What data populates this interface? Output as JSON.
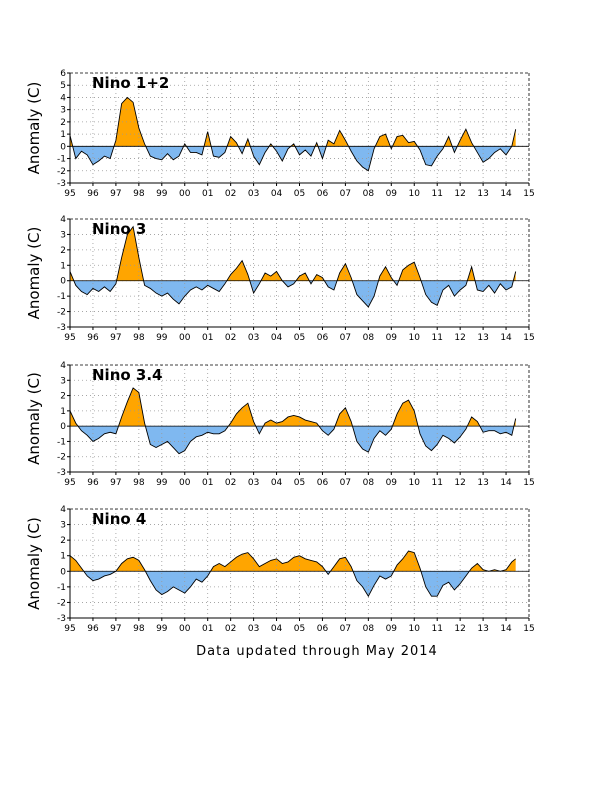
{
  "footer": "Data updated through May 2014",
  "colors": {
    "positive": "#ffa500",
    "negative": "#7fb8f0",
    "line": "#000000",
    "grid": "#999999"
  },
  "chart_data": [
    {
      "type": "area",
      "title": "Nino 1+2",
      "ylabel": "Anomaly (C)",
      "xlim": [
        95,
        115
      ],
      "ylim": [
        -3,
        6
      ],
      "yticks": [
        -3,
        -2,
        -1,
        0,
        1,
        2,
        3,
        4,
        5,
        6
      ],
      "xticks": [
        95,
        96,
        97,
        98,
        99,
        100,
        101,
        102,
        103,
        104,
        105,
        106,
        107,
        108,
        109,
        110,
        111,
        112,
        113,
        114,
        115
      ],
      "xtick_labels": [
        "95",
        "96",
        "97",
        "98",
        "99",
        "00",
        "01",
        "02",
        "03",
        "04",
        "05",
        "06",
        "07",
        "08",
        "09",
        "10",
        "11",
        "12",
        "13",
        "14",
        "15"
      ],
      "grid": true,
      "x": [
        95.0,
        95.25,
        95.5,
        95.75,
        96.0,
        96.25,
        96.5,
        96.75,
        97.0,
        97.25,
        97.5,
        97.75,
        98.0,
        98.25,
        98.5,
        98.75,
        99.0,
        99.25,
        99.5,
        99.75,
        100.0,
        100.25,
        100.5,
        100.75,
        101.0,
        101.25,
        101.5,
        101.75,
        102.0,
        102.25,
        102.5,
        102.75,
        103.0,
        103.25,
        103.5,
        103.75,
        104.0,
        104.25,
        104.5,
        104.75,
        105.0,
        105.25,
        105.5,
        105.75,
        106.0,
        106.25,
        106.5,
        106.75,
        107.0,
        107.25,
        107.5,
        107.75,
        108.0,
        108.25,
        108.5,
        108.75,
        109.0,
        109.25,
        109.5,
        109.75,
        110.0,
        110.25,
        110.5,
        110.75,
        111.0,
        111.25,
        111.5,
        111.75,
        112.0,
        112.25,
        112.5,
        112.75,
        113.0,
        113.25,
        113.5,
        113.75,
        114.0,
        114.25,
        114.42
      ],
      "values": [
        0.9,
        -1.0,
        -0.4,
        -0.7,
        -1.5,
        -1.2,
        -0.8,
        -1.0,
        0.5,
        3.5,
        4.0,
        3.6,
        1.5,
        0.2,
        -0.8,
        -1.0,
        -1.1,
        -0.6,
        -1.1,
        -0.8,
        0.2,
        -0.5,
        -0.5,
        -0.7,
        1.2,
        -0.8,
        -0.9,
        -0.5,
        0.8,
        0.3,
        -0.6,
        0.6,
        -0.8,
        -1.5,
        -0.5,
        0.2,
        -0.4,
        -1.2,
        -0.2,
        0.2,
        -0.7,
        -0.3,
        -0.8,
        0.3,
        -1.0,
        0.5,
        0.2,
        1.3,
        0.5,
        -0.4,
        -1.2,
        -1.7,
        -2.0,
        -0.2,
        0.8,
        1.0,
        -0.2,
        0.8,
        0.9,
        0.3,
        0.4,
        -0.3,
        -1.5,
        -1.6,
        -0.8,
        -0.2,
        0.8,
        -0.5,
        0.5,
        1.4,
        0.3,
        -0.5,
        -1.3,
        -1.0,
        -0.5,
        -0.2,
        -0.7,
        0.0,
        1.4
      ]
    },
    {
      "type": "area",
      "title": "Nino 3",
      "ylabel": "Anomaly (C)",
      "xlim": [
        95,
        115
      ],
      "ylim": [
        -3,
        4
      ],
      "yticks": [
        -3,
        -2,
        -1,
        0,
        1,
        2,
        3,
        4
      ],
      "xticks": [
        95,
        96,
        97,
        98,
        99,
        100,
        101,
        102,
        103,
        104,
        105,
        106,
        107,
        108,
        109,
        110,
        111,
        112,
        113,
        114,
        115
      ],
      "xtick_labels": [
        "95",
        "96",
        "97",
        "98",
        "99",
        "00",
        "01",
        "02",
        "03",
        "04",
        "05",
        "06",
        "07",
        "08",
        "09",
        "10",
        "11",
        "12",
        "13",
        "14",
        "15"
      ],
      "grid": true,
      "x": [
        95.0,
        95.25,
        95.5,
        95.75,
        96.0,
        96.25,
        96.5,
        96.75,
        97.0,
        97.25,
        97.5,
        97.75,
        98.0,
        98.25,
        98.5,
        98.75,
        99.0,
        99.25,
        99.5,
        99.75,
        100.0,
        100.25,
        100.5,
        100.75,
        101.0,
        101.25,
        101.5,
        101.75,
        102.0,
        102.25,
        102.5,
        102.75,
        103.0,
        103.25,
        103.5,
        103.75,
        104.0,
        104.25,
        104.5,
        104.75,
        105.0,
        105.25,
        105.5,
        105.75,
        106.0,
        106.25,
        106.5,
        106.75,
        107.0,
        107.25,
        107.5,
        107.75,
        108.0,
        108.25,
        108.5,
        108.75,
        109.0,
        109.25,
        109.5,
        109.75,
        110.0,
        110.25,
        110.5,
        110.75,
        111.0,
        111.25,
        111.5,
        111.75,
        112.0,
        112.25,
        112.5,
        112.75,
        113.0,
        113.25,
        113.5,
        113.75,
        114.0,
        114.25,
        114.42
      ],
      "values": [
        0.6,
        -0.3,
        -0.7,
        -0.9,
        -0.5,
        -0.7,
        -0.4,
        -0.7,
        -0.2,
        1.5,
        3.0,
        3.5,
        1.5,
        -0.3,
        -0.5,
        -0.8,
        -1.0,
        -0.8,
        -1.2,
        -1.5,
        -1.0,
        -0.6,
        -0.4,
        -0.6,
        -0.3,
        -0.5,
        -0.7,
        -0.2,
        0.4,
        0.8,
        1.3,
        0.4,
        -0.8,
        -0.2,
        0.5,
        0.3,
        0.6,
        0.0,
        -0.4,
        -0.2,
        0.3,
        0.5,
        -0.2,
        0.4,
        0.2,
        -0.4,
        -0.6,
        0.5,
        1.1,
        0.2,
        -0.9,
        -1.3,
        -1.7,
        -1.0,
        0.3,
        0.9,
        0.2,
        -0.3,
        0.7,
        1.0,
        1.2,
        0.2,
        -0.9,
        -1.4,
        -1.6,
        -0.6,
        -0.3,
        -1.0,
        -0.6,
        -0.3,
        0.9,
        -0.6,
        -0.7,
        -0.3,
        -0.8,
        -0.2,
        -0.6,
        -0.4,
        0.6
      ]
    },
    {
      "type": "area",
      "title": "Nino 3.4",
      "ylabel": "Anomaly (C)",
      "xlim": [
        95,
        115
      ],
      "ylim": [
        -3,
        4
      ],
      "yticks": [
        -3,
        -2,
        -1,
        0,
        1,
        2,
        3,
        4
      ],
      "xticks": [
        95,
        96,
        97,
        98,
        99,
        100,
        101,
        102,
        103,
        104,
        105,
        106,
        107,
        108,
        109,
        110,
        111,
        112,
        113,
        114,
        115
      ],
      "xtick_labels": [
        "95",
        "96",
        "97",
        "98",
        "99",
        "00",
        "01",
        "02",
        "03",
        "04",
        "05",
        "06",
        "07",
        "08",
        "09",
        "10",
        "11",
        "12",
        "13",
        "14",
        "15"
      ],
      "grid": true,
      "x": [
        95.0,
        95.25,
        95.5,
        95.75,
        96.0,
        96.25,
        96.5,
        96.75,
        97.0,
        97.25,
        97.5,
        97.75,
        98.0,
        98.25,
        98.5,
        98.75,
        99.0,
        99.25,
        99.5,
        99.75,
        100.0,
        100.25,
        100.5,
        100.75,
        101.0,
        101.25,
        101.5,
        101.75,
        102.0,
        102.25,
        102.5,
        102.75,
        103.0,
        103.25,
        103.5,
        103.75,
        104.0,
        104.25,
        104.5,
        104.75,
        105.0,
        105.25,
        105.5,
        105.75,
        106.0,
        106.25,
        106.5,
        106.75,
        107.0,
        107.25,
        107.5,
        107.75,
        108.0,
        108.25,
        108.5,
        108.75,
        109.0,
        109.25,
        109.5,
        109.75,
        110.0,
        110.25,
        110.5,
        110.75,
        111.0,
        111.25,
        111.5,
        111.75,
        112.0,
        112.25,
        112.5,
        112.75,
        113.0,
        113.25,
        113.5,
        113.75,
        114.0,
        114.25,
        114.42
      ],
      "values": [
        1.0,
        0.2,
        -0.3,
        -0.6,
        -1.0,
        -0.8,
        -0.5,
        -0.4,
        -0.5,
        0.6,
        1.6,
        2.5,
        2.2,
        0.2,
        -1.2,
        -1.4,
        -1.2,
        -1.0,
        -1.4,
        -1.8,
        -1.6,
        -1.0,
        -0.7,
        -0.6,
        -0.4,
        -0.5,
        -0.5,
        -0.3,
        0.2,
        0.8,
        1.2,
        1.5,
        0.3,
        -0.5,
        0.2,
        0.4,
        0.2,
        0.3,
        0.6,
        0.7,
        0.6,
        0.4,
        0.3,
        0.2,
        -0.3,
        -0.6,
        -0.2,
        0.8,
        1.2,
        0.3,
        -1.0,
        -1.5,
        -1.7,
        -0.8,
        -0.3,
        -0.6,
        -0.2,
        0.8,
        1.5,
        1.7,
        1.0,
        -0.5,
        -1.3,
        -1.6,
        -1.2,
        -0.6,
        -0.8,
        -1.1,
        -0.7,
        -0.2,
        0.6,
        0.3,
        -0.4,
        -0.3,
        -0.3,
        -0.5,
        -0.4,
        -0.6,
        0.5
      ]
    },
    {
      "type": "area",
      "title": "Nino 4",
      "ylabel": "Anomaly (C)",
      "xlim": [
        95,
        115
      ],
      "ylim": [
        -3,
        4
      ],
      "yticks": [
        -3,
        -2,
        -1,
        0,
        1,
        2,
        3,
        4
      ],
      "xticks": [
        95,
        96,
        97,
        98,
        99,
        100,
        101,
        102,
        103,
        104,
        105,
        106,
        107,
        108,
        109,
        110,
        111,
        112,
        113,
        114,
        115
      ],
      "xtick_labels": [
        "95",
        "96",
        "97",
        "98",
        "99",
        "00",
        "01",
        "02",
        "03",
        "04",
        "05",
        "06",
        "07",
        "08",
        "09",
        "10",
        "11",
        "12",
        "13",
        "14",
        "15"
      ],
      "grid": true,
      "x": [
        95.0,
        95.25,
        95.5,
        95.75,
        96.0,
        96.25,
        96.5,
        96.75,
        97.0,
        97.25,
        97.5,
        97.75,
        98.0,
        98.25,
        98.5,
        98.75,
        99.0,
        99.25,
        99.5,
        99.75,
        100.0,
        100.25,
        100.5,
        100.75,
        101.0,
        101.25,
        101.5,
        101.75,
        102.0,
        102.25,
        102.5,
        102.75,
        103.0,
        103.25,
        103.5,
        103.75,
        104.0,
        104.25,
        104.5,
        104.75,
        105.0,
        105.25,
        105.5,
        105.75,
        106.0,
        106.25,
        106.5,
        106.75,
        107.0,
        107.25,
        107.5,
        107.75,
        108.0,
        108.25,
        108.5,
        108.75,
        109.0,
        109.25,
        109.5,
        109.75,
        110.0,
        110.25,
        110.5,
        110.75,
        111.0,
        111.25,
        111.5,
        111.75,
        112.0,
        112.25,
        112.5,
        112.75,
        113.0,
        113.25,
        113.5,
        113.75,
        114.0,
        114.25,
        114.42
      ],
      "values": [
        1.0,
        0.7,
        0.2,
        -0.3,
        -0.6,
        -0.5,
        -0.3,
        -0.2,
        0.0,
        0.5,
        0.8,
        0.9,
        0.7,
        0.1,
        -0.6,
        -1.2,
        -1.5,
        -1.3,
        -1.0,
        -1.2,
        -1.4,
        -1.0,
        -0.5,
        -0.7,
        -0.3,
        0.3,
        0.5,
        0.3,
        0.6,
        0.9,
        1.1,
        1.2,
        0.8,
        0.3,
        0.5,
        0.7,
        0.8,
        0.5,
        0.6,
        0.9,
        1.0,
        0.8,
        0.7,
        0.6,
        0.3,
        -0.2,
        0.3,
        0.8,
        0.9,
        0.3,
        -0.6,
        -1.0,
        -1.6,
        -0.9,
        -0.3,
        -0.5,
        -0.3,
        0.4,
        0.8,
        1.3,
        1.2,
        0.2,
        -1.0,
        -1.6,
        -1.6,
        -0.9,
        -0.7,
        -1.2,
        -0.8,
        -0.3,
        0.2,
        0.5,
        0.1,
        0.0,
        0.1,
        0.0,
        0.1,
        0.6,
        0.8
      ]
    }
  ]
}
